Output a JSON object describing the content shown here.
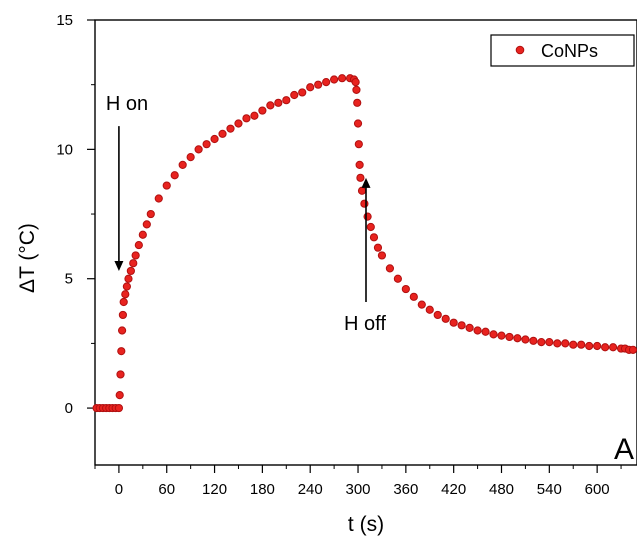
{
  "chart_data": {
    "type": "scatter",
    "xlabel": "t (s)",
    "ylabel": "ΔT (°C)",
    "xlim": [
      -30,
      650
    ],
    "ylim": [
      -2.2,
      15
    ],
    "x_ticks": [
      0,
      60,
      120,
      180,
      240,
      300,
      360,
      420,
      480,
      540,
      600
    ],
    "y_ticks": [
      0,
      5,
      10,
      15
    ],
    "grid": false,
    "legend_position": "top-right",
    "panel_label": "A",
    "colors": {
      "series": "#e8231f",
      "series_edge": "#b01010",
      "axis": "#000000"
    },
    "annotations": [
      {
        "text": "H on",
        "arrow_direction": "down",
        "x": 0,
        "y_from": 10.9,
        "y_to": 5.3
      },
      {
        "text": "H off",
        "arrow_direction": "up",
        "x": 310,
        "y_from": 4.1,
        "y_to": 8.9
      }
    ],
    "series": [
      {
        "name": "CoNPs",
        "x": [
          -32,
          -28,
          -24,
          -20,
          -16,
          -12,
          -8,
          -4,
          0,
          1,
          2,
          3,
          4,
          5,
          6,
          8,
          10,
          12,
          15,
          18,
          21,
          25,
          30,
          35,
          40,
          50,
          60,
          70,
          80,
          90,
          100,
          110,
          120,
          130,
          140,
          150,
          160,
          170,
          180,
          190,
          200,
          210,
          220,
          230,
          240,
          250,
          260,
          270,
          280,
          290,
          295,
          297,
          298,
          299,
          300,
          301,
          302,
          303,
          305,
          308,
          312,
          316,
          320,
          325,
          330,
          340,
          350,
          360,
          370,
          380,
          390,
          400,
          410,
          420,
          430,
          440,
          450,
          460,
          470,
          480,
          490,
          500,
          510,
          520,
          530,
          540,
          550,
          560,
          570,
          580,
          590,
          600,
          610,
          620,
          630,
          635,
          640,
          645
        ],
        "y": [
          0,
          0,
          0,
          0,
          0,
          0,
          0,
          0,
          0,
          0.5,
          1.3,
          2.2,
          3.0,
          3.6,
          4.1,
          4.4,
          4.7,
          5.0,
          5.3,
          5.6,
          5.9,
          6.3,
          6.7,
          7.1,
          7.5,
          8.1,
          8.6,
          9.0,
          9.4,
          9.7,
          10.0,
          10.2,
          10.4,
          10.6,
          10.8,
          11.0,
          11.2,
          11.3,
          11.5,
          11.7,
          11.8,
          11.9,
          12.1,
          12.2,
          12.4,
          12.5,
          12.6,
          12.7,
          12.75,
          12.75,
          12.7,
          12.6,
          12.3,
          11.8,
          11.0,
          10.2,
          9.4,
          8.9,
          8.4,
          7.9,
          7.4,
          7.0,
          6.6,
          6.2,
          5.9,
          5.4,
          5.0,
          4.6,
          4.3,
          4.0,
          3.8,
          3.6,
          3.45,
          3.3,
          3.2,
          3.1,
          3.0,
          2.95,
          2.85,
          2.8,
          2.75,
          2.7,
          2.65,
          2.6,
          2.55,
          2.55,
          2.5,
          2.5,
          2.45,
          2.45,
          2.4,
          2.4,
          2.35,
          2.35,
          2.3,
          2.3,
          2.25,
          2.25
        ]
      }
    ]
  }
}
